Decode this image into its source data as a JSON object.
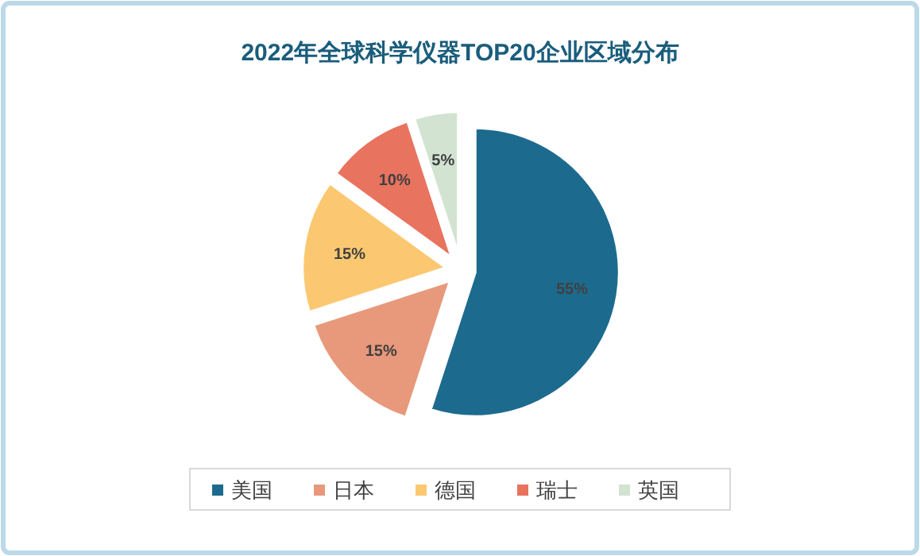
{
  "chart_data": {
    "type": "pie",
    "title": "2022年全球科学仪器TOP20企业区域分布",
    "categories": [
      "美国",
      "日本",
      "德国",
      "瑞士",
      "英国"
    ],
    "values": [
      55,
      15,
      15,
      10,
      5
    ],
    "colors": [
      "#1c6b8e",
      "#e8997b",
      "#fbc871",
      "#e8735f",
      "#d2e3d2"
    ],
    "value_labels": [
      "55%",
      "15%",
      "15%",
      "10%",
      "5%"
    ],
    "legend": "bottom"
  }
}
